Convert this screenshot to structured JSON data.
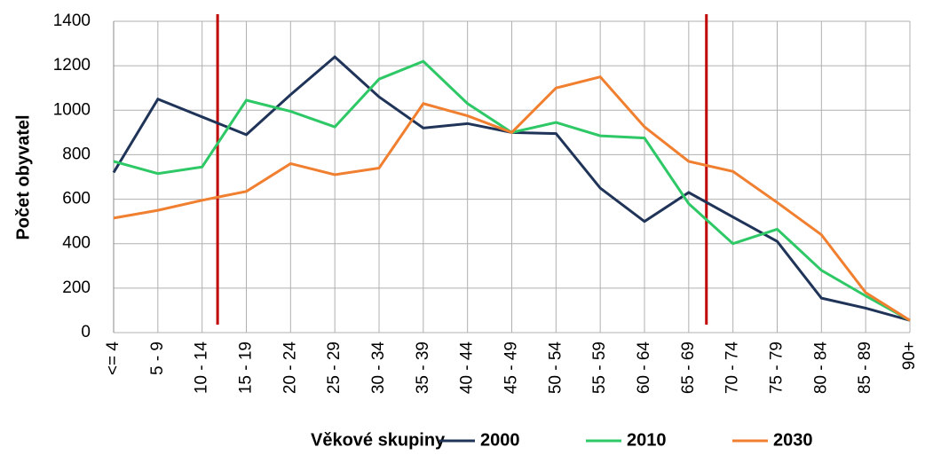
{
  "chart_data": {
    "type": "line",
    "y_label": "Počet obyvatel",
    "x_label": "Věkové skupiny",
    "categories": [
      "<= 4",
      "5 - 9",
      "10 - 14",
      "15 - 19",
      "20 - 24",
      "25 - 29",
      "30 - 34",
      "35 - 39",
      "40 - 44",
      "45 - 49",
      "50 - 54",
      "55 - 59",
      "60 - 64",
      "65 - 69",
      "70 - 74",
      "75 - 79",
      "80 - 84",
      "85 - 89",
      "90+"
    ],
    "series": [
      {
        "name": "2000",
        "color": "#1f3458",
        "values": [
          720,
          1050,
          970,
          890,
          1070,
          1240,
          1060,
          920,
          940,
          900,
          895,
          650,
          500,
          630,
          520,
          410,
          155,
          110,
          55
        ]
      },
      {
        "name": "2010",
        "color": "#2ec866",
        "values": [
          770,
          715,
          745,
          1045,
          995,
          925,
          1140,
          1220,
          1030,
          900,
          945,
          885,
          875,
          580,
          400,
          465,
          280,
          165,
          55
        ]
      },
      {
        "name": "2030",
        "color": "#f07f30",
        "values": [
          515,
          550,
          595,
          635,
          760,
          710,
          740,
          1030,
          975,
          900,
          1100,
          1150,
          925,
          770,
          725,
          585,
          440,
          180,
          55
        ]
      }
    ],
    "ylim": [
      0,
      1400
    ],
    "yticks": [
      0,
      200,
      400,
      600,
      800,
      1000,
      1200,
      1400
    ],
    "grid": true
  }
}
